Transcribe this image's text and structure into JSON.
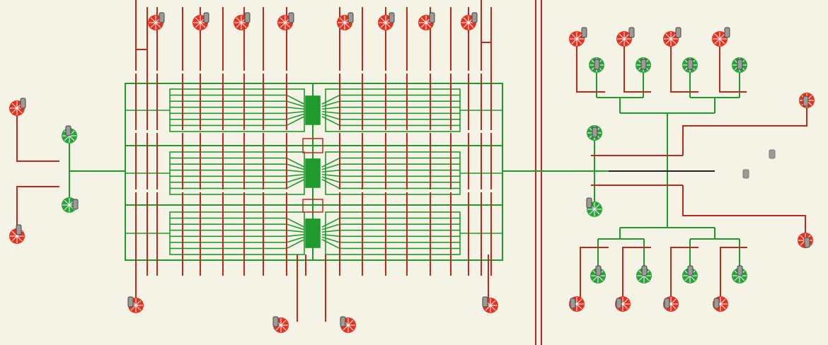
{
  "figure": {
    "description_visible_text": "",
    "colors": {
      "background": "#f4f3e6",
      "control_layer": "#c0281c",
      "flow_layer": "#1f9a2c",
      "port_red_fill": "#e8321f",
      "port_green_fill": "#2aa33a",
      "pin_metal": "#9a9a96",
      "divider_line": "#c0281c"
    },
    "layers": [
      "control-layer-red",
      "flow-layer-green"
    ],
    "port_types": [
      "punched-port-red",
      "punched-port-green",
      "port-pin"
    ],
    "modules": [
      "left-reaction-array",
      "right-tree-mixer",
      "inlet-left-manifold"
    ]
  }
}
